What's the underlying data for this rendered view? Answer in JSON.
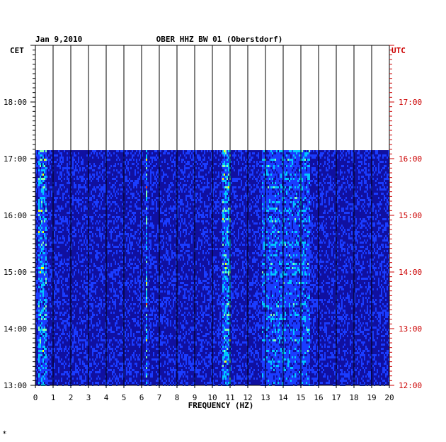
{
  "chart_data": {
    "type": "heatmap",
    "title": "OBER HHZ BW 01 (Oberstdorf)",
    "date": "Jan 9,2010",
    "xlabel": "FREQUENCY (HZ)",
    "xlim": [
      0,
      20
    ],
    "x_ticks": [
      "0",
      "1",
      "2",
      "3",
      "4",
      "5",
      "6",
      "7",
      "8",
      "9",
      "10",
      "11",
      "12",
      "13",
      "14",
      "15",
      "16",
      "17",
      "18",
      "19",
      "20"
    ],
    "left_axis": {
      "label": "CET",
      "ticks": [
        "13:00",
        "14:00",
        "15:00",
        "16:00",
        "17:00",
        "18:00"
      ],
      "color": "#000000"
    },
    "right_axis": {
      "label": "UTC",
      "ticks": [
        "12:00",
        "13:00",
        "14:00",
        "15:00",
        "16:00",
        "17:00"
      ],
      "color": "#cc0000"
    },
    "ylim_cet_hours": [
      13.0,
      19.0
    ],
    "data_end_cet_hours": 17.15,
    "background_color": "#1010a0",
    "colorscale": [
      "#0a0a96",
      "#1a3cff",
      "#00c8ff",
      "#80ffb0",
      "#ffff00",
      "#ff3000"
    ],
    "features": [
      {
        "name": "low-frequency noise",
        "freq_hz": [
          0.1,
          0.6
        ],
        "intensity": "high"
      },
      {
        "name": "6.2 Hz line",
        "freq_hz": [
          6.2,
          6.25
        ],
        "intensity": "very high"
      },
      {
        "name": "10.8 Hz band",
        "freq_hz": [
          10.5,
          11.0
        ],
        "intensity": "high"
      },
      {
        "name": "13-15.5 Hz band",
        "freq_hz": [
          12.8,
          15.5
        ],
        "intensity": "medium"
      }
    ]
  },
  "footer_mark": "*"
}
